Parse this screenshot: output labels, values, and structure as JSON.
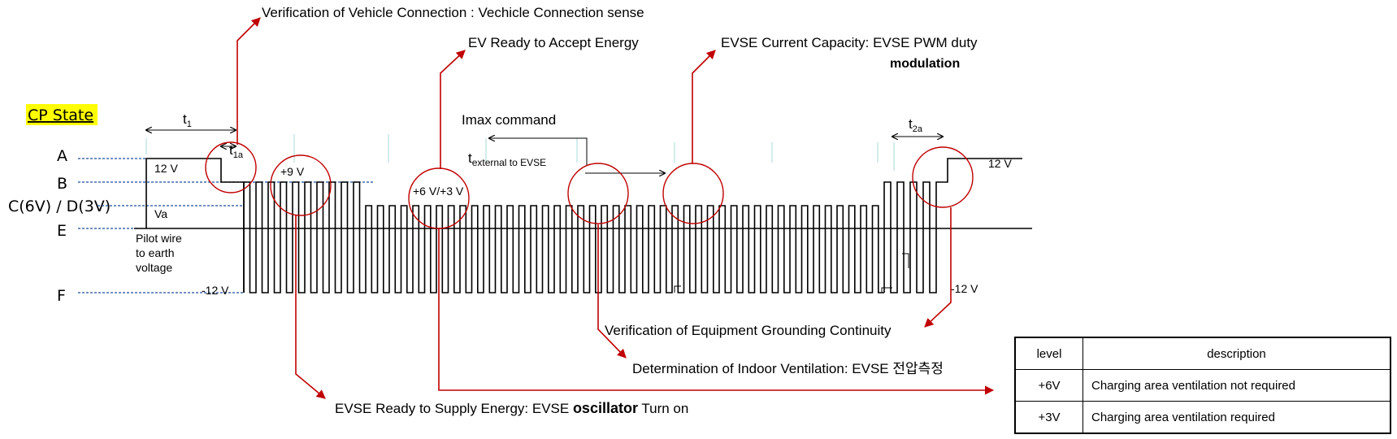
{
  "cp_state": {
    "title": "CP State",
    "highlight_color": "#ffff00",
    "states": [
      "A",
      "B",
      "C(6V) / D(3V)",
      "E",
      "F"
    ]
  },
  "waveform_labels": {
    "v12_left": "12 V",
    "v9": "+9 V",
    "v6_3": "+6 V/+3 V",
    "va": "Va",
    "pilot_line1": "Pilot wire",
    "pilot_line2": "to earth",
    "pilot_line3": "voltage",
    "vm12_left": "-12 V",
    "v12_right": "12 V",
    "vm12_right": "-12 V",
    "t1": "t",
    "t1_sub": "1",
    "t1a": "t",
    "t1a_sub": "1a",
    "t2a": "t",
    "t2a_sub": "2a",
    "imax": "Imax command",
    "text_t": "t",
    "text_sub": "external to EVSE"
  },
  "annotations": {
    "vehicle_connection": "Verification of Vehicle Connection : Vechicle Connection sense",
    "ev_ready": "EV Ready to Accept Energy",
    "evse_capacity": "EVSE Current Capacity: EVSE PWM duty",
    "modulation": "modulation",
    "grounding": "Verification of Equipment Grounding Continuity",
    "ventilation": "Determination of Indoor Ventilation: EVSE 전압측정",
    "supply_prefix": "EVSE Ready to Supply Energy: EVSE ",
    "supply_bold": "oscillator",
    "supply_suffix": " Turn on"
  },
  "colors": {
    "annotation": "#c00000",
    "state_guide": "#1f4e9c",
    "waveform": "#000000",
    "tick": "#a8d8d8"
  },
  "legend_table": {
    "headers": [
      "level",
      "description"
    ],
    "rows": [
      [
        "+6V",
        "Charging area ventilation not required"
      ],
      [
        "+3V",
        "Charging area ventilation required"
      ]
    ]
  }
}
